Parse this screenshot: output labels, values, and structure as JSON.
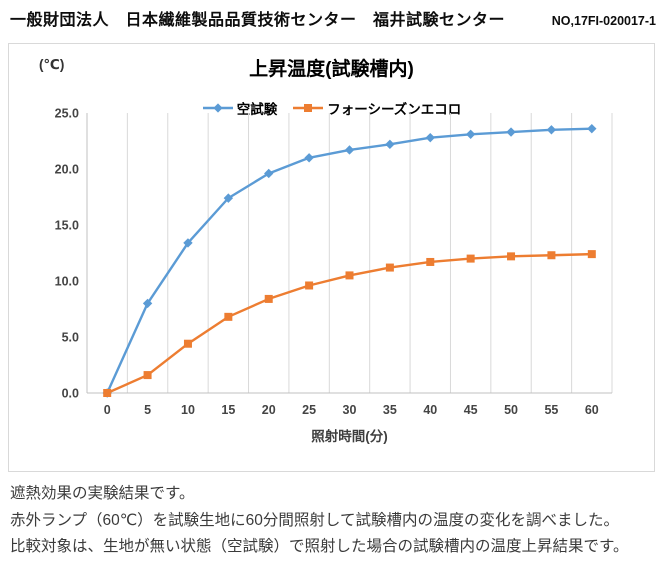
{
  "header": {
    "organization": "一般財団法人　日本繊維製品品質技術センター　福井試験センター",
    "report_no": "NO,17FI-020017-1"
  },
  "chart_data": {
    "type": "line",
    "title": "上昇温度(試験槽内)",
    "unit_label": "(℃)",
    "xlabel": "照射時間(分)",
    "categories": [
      0,
      5,
      10,
      15,
      20,
      25,
      30,
      35,
      40,
      45,
      50,
      55,
      60
    ],
    "series": [
      {
        "name": "空試験",
        "color": "#5B9BD5",
        "marker": "diamond",
        "values": [
          0.0,
          8.0,
          13.4,
          17.4,
          19.6,
          21.0,
          21.7,
          22.2,
          22.8,
          23.1,
          23.3,
          23.5,
          23.6
        ]
      },
      {
        "name": "フォーシーズンエコロ",
        "color": "#ED7D31",
        "marker": "square",
        "values": [
          0.0,
          1.6,
          4.4,
          6.8,
          8.4,
          9.6,
          10.5,
          11.2,
          11.7,
          12.0,
          12.2,
          12.3,
          12.4
        ]
      }
    ],
    "ylim": [
      0,
      25
    ],
    "y_tick_step": 5,
    "y_tick_decimals": 1,
    "grid": "vertical-only",
    "grid_color": "#D9D9D9",
    "axis_color": "#C0C0C0",
    "legend_position": "top"
  },
  "notes": {
    "lines": [
      "遮熱効果の実験結果です。",
      "赤外ランプ（60℃）を試験生地に60分間照射して試験槽内の温度の変化を調べました。",
      "比較対象は、生地が無い状態（空試験）で照射した場合の試験槽内の温度上昇結果です。"
    ]
  }
}
